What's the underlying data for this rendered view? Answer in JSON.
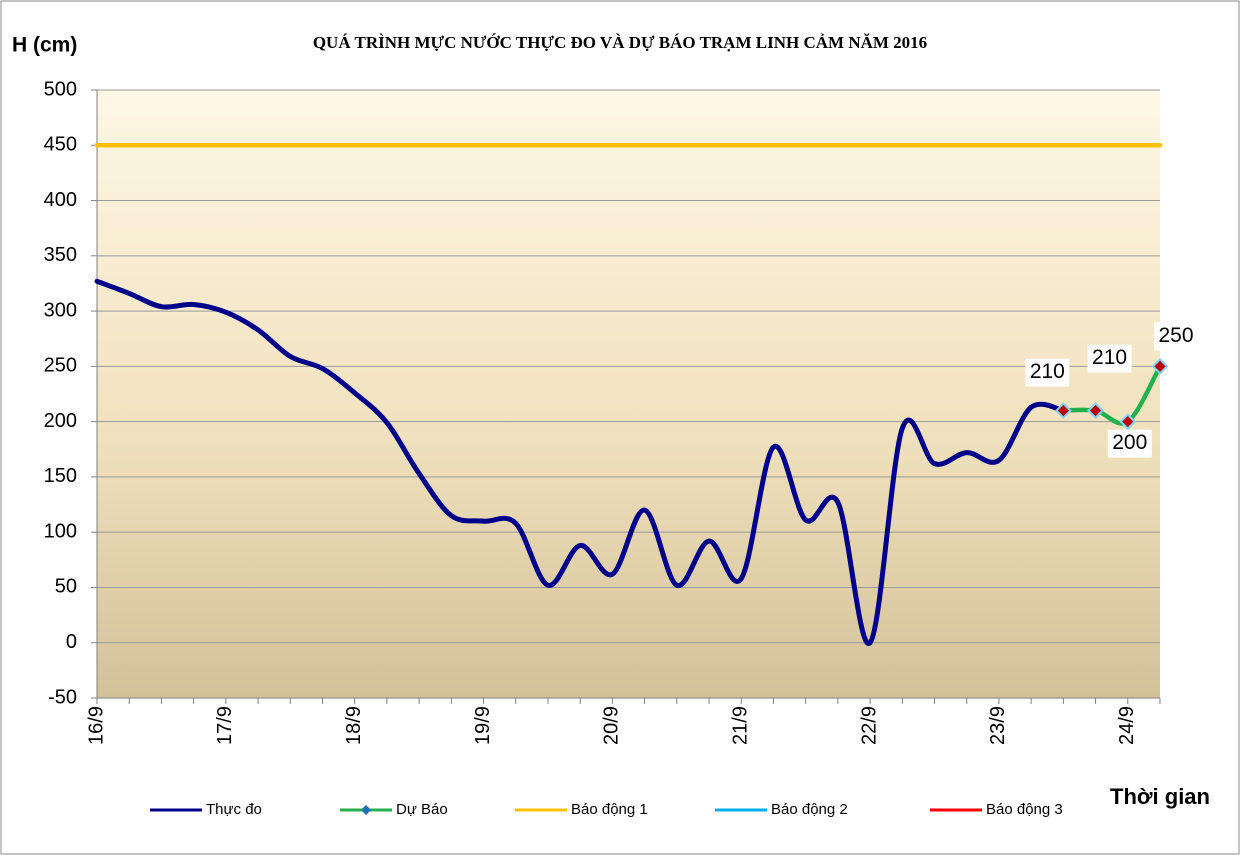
{
  "chart_data": {
    "type": "line",
    "title": "QUÁ TRÌNH  MỰC NƯỚC THỰC ĐO VÀ DỰ BÁO TRẠM  LINH  CẢM NĂM 2016",
    "y_label": "H (cm)",
    "x_label": "Thời gian",
    "categories": [
      "16/9",
      null,
      null,
      null,
      "17/9",
      null,
      null,
      null,
      "18/9",
      null,
      null,
      null,
      "19/9",
      null,
      null,
      null,
      "20/9",
      null,
      null,
      null,
      "21/9",
      null,
      null,
      null,
      "22/9",
      null,
      null,
      null,
      "23/9",
      null,
      null,
      null,
      "24/9",
      null
    ],
    "series": [
      {
        "name": "Thực đo",
        "color": "#00008b",
        "values": [
          327,
          316,
          304,
          306,
          299,
          283,
          259,
          248,
          226,
          199,
          153,
          115,
          110,
          108,
          52,
          88,
          62,
          120,
          52,
          92,
          58,
          177,
          111,
          127,
          0,
          194,
          162,
          172,
          165,
          213,
          210,
          null,
          null,
          null
        ]
      },
      {
        "name": "Dự Báo",
        "color": "#22b14c",
        "marker": "diamond",
        "data_labels": true,
        "values": [
          null,
          null,
          null,
          null,
          null,
          null,
          null,
          null,
          null,
          null,
          null,
          null,
          null,
          null,
          null,
          null,
          null,
          null,
          null,
          null,
          null,
          null,
          null,
          null,
          null,
          null,
          null,
          null,
          null,
          null,
          210,
          210,
          200,
          250
        ]
      },
      {
        "name": "Báo động 1",
        "color": "#ffc000",
        "values": [
          450,
          450,
          450,
          450,
          450,
          450,
          450,
          450,
          450,
          450,
          450,
          450,
          450,
          450,
          450,
          450,
          450,
          450,
          450,
          450,
          450,
          450,
          450,
          450,
          450,
          450,
          450,
          450,
          450,
          450,
          450,
          450,
          450,
          450
        ]
      },
      {
        "name": "Báo động 2",
        "color": "#00b0f0"
      },
      {
        "name": "Báo động 3",
        "color": "#ff0000"
      }
    ],
    "ylim": [
      -50,
      500
    ],
    "yticks": [
      -50,
      0,
      50,
      100,
      150,
      200,
      250,
      300,
      350,
      400,
      450,
      500
    ],
    "grid": true,
    "smooth": true,
    "legend": "bottom"
  }
}
